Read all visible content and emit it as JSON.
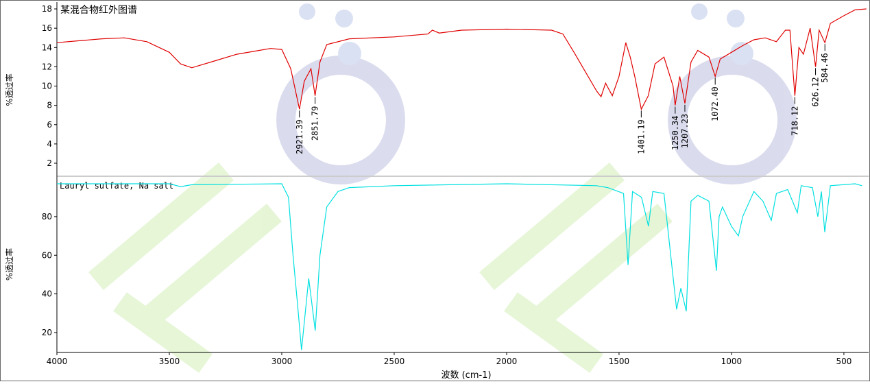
{
  "chart_data": [
    {
      "type": "line",
      "title": "某混合物红外图谱",
      "y_label": "%透过率",
      "xlim": [
        4000,
        390
      ],
      "ylim": [
        0.65,
        18.57
      ],
      "yticks": [
        2,
        4,
        6,
        8,
        10,
        12,
        14,
        16,
        18
      ],
      "x": [
        4000,
        3900,
        3800,
        3700,
        3600,
        3500,
        3450,
        3400,
        3300,
        3200,
        3100,
        3050,
        3000,
        2960,
        2921.39,
        2900,
        2870,
        2851.79,
        2830,
        2800,
        2700,
        2500,
        2350,
        2330,
        2300,
        2200,
        2000,
        1800,
        1750,
        1700,
        1650,
        1600,
        1580,
        1560,
        1530,
        1500,
        1470,
        1450,
        1430,
        1401.19,
        1370,
        1340,
        1300,
        1260,
        1250.34,
        1230,
        1207.23,
        1180,
        1150,
        1100,
        1072.4,
        1050,
        1000,
        950,
        900,
        850,
        800,
        760,
        740,
        718.12,
        700,
        680,
        650,
        626.12,
        610,
        584.46,
        560,
        500,
        450,
        400
      ],
      "series": [
        {
          "name": "某混合物红外图谱",
          "color": "#e00000",
          "values": [
            14.5,
            14.7,
            14.9,
            15.0,
            14.6,
            13.5,
            12.3,
            11.9,
            12.6,
            13.3,
            13.7,
            13.9,
            13.8,
            11.8,
            7.6,
            10.5,
            11.8,
            9.0,
            12.5,
            14.3,
            14.9,
            15.1,
            15.4,
            15.8,
            15.5,
            15.8,
            15.9,
            15.8,
            15.4,
            13.5,
            11.5,
            9.5,
            8.9,
            10.3,
            9.0,
            11.0,
            14.5,
            13.0,
            11.0,
            7.6,
            9.0,
            12.3,
            13.0,
            10.0,
            8.0,
            11.0,
            8.2,
            12.5,
            13.7,
            13.0,
            11.0,
            12.8,
            13.5,
            14.2,
            14.8,
            15.0,
            14.6,
            15.8,
            15.8,
            9.0,
            14.0,
            13.3,
            16.0,
            12.0,
            15.8,
            14.5,
            16.5,
            17.3,
            17.9,
            18.0
          ]
        }
      ],
      "annotations": [
        {
          "x": 2921.39,
          "label": "2921.39"
        },
        {
          "x": 2851.79,
          "label": "2851.79"
        },
        {
          "x": 1401.19,
          "label": "1401.19"
        },
        {
          "x": 1250.34,
          "label": "1250.34"
        },
        {
          "x": 1207.23,
          "label": "1207.23"
        },
        {
          "x": 1072.4,
          "label": "1072.40"
        },
        {
          "x": 718.12,
          "label": "718.12"
        },
        {
          "x": 626.12,
          "label": "626.12"
        },
        {
          "x": 584.46,
          "label": "584.46"
        }
      ]
    },
    {
      "type": "line",
      "title": "Lauryl sulfate, Na salt",
      "y_label": "%透过率",
      "x_label": "波数 (cm-1)",
      "xlim": [
        4000,
        390
      ],
      "xticks": [
        4000,
        3500,
        3000,
        2500,
        2000,
        1500,
        1000,
        500
      ],
      "ylim": [
        9.7,
        100.9
      ],
      "yticks": [
        20,
        40,
        60,
        80
      ],
      "x": [
        4000,
        3500,
        3450,
        3400,
        3000,
        2970,
        2950,
        2930,
        2912,
        2880,
        2851,
        2830,
        2800,
        2750,
        2700,
        2500,
        2000,
        1600,
        1550,
        1480,
        1460,
        1440,
        1400,
        1369,
        1350,
        1300,
        1244,
        1225,
        1201,
        1180,
        1150,
        1100,
        1067,
        1055,
        1040,
        1000,
        969,
        950,
        900,
        860,
        823,
        800,
        750,
        707,
        690,
        640,
        616,
        600,
        585,
        560,
        450,
        420
      ],
      "series": [
        {
          "name": "Lauryl sulfate, Na salt",
          "color": "#00e0e0",
          "values": [
            97,
            97,
            95.5,
            96.5,
            97,
            90,
            60,
            35,
            11,
            48,
            21,
            60,
            85,
            93,
            95,
            96,
            97,
            96,
            95,
            92,
            55,
            93,
            90,
            75,
            93,
            92,
            32,
            43,
            31,
            88,
            91,
            88,
            52,
            80,
            85,
            75,
            70,
            80,
            93,
            88,
            78,
            92,
            94,
            82,
            96,
            95,
            80,
            93,
            72,
            96,
            97,
            96
          ]
        }
      ]
    }
  ]
}
